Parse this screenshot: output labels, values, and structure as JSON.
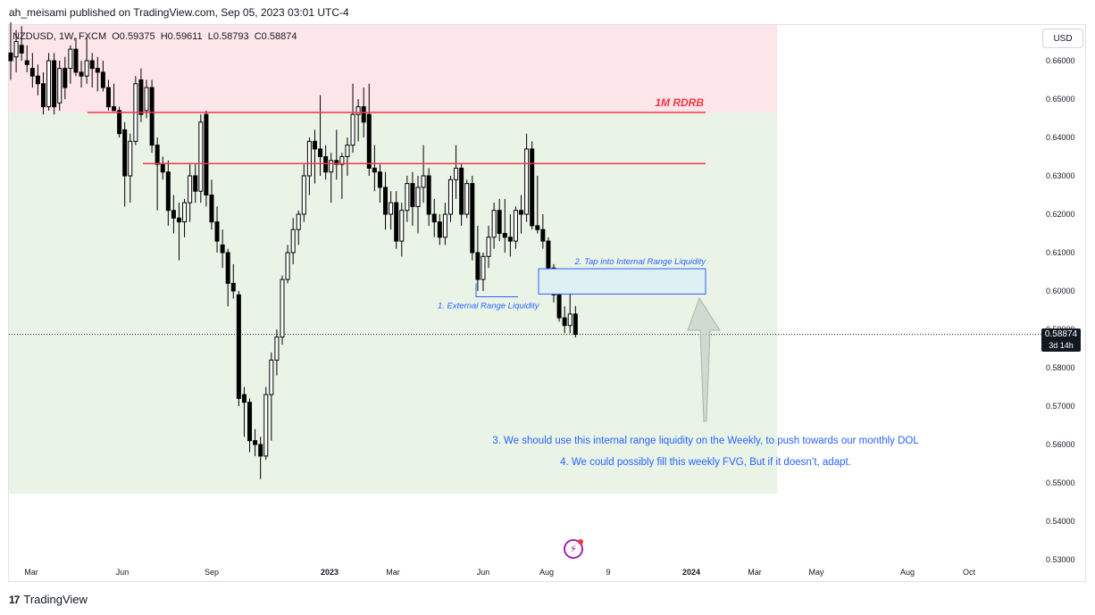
{
  "header": {
    "published": "ah_meisami published on TradingView.com, Sep 05, 2023 03:01 UTC-4"
  },
  "legend": {
    "symbol": "NZDUSD, 1W, FXCM",
    "open": "O0.59375",
    "high": "H0.59611",
    "low": "L0.58793",
    "close": "C0.58874"
  },
  "currency_button": "USD",
  "last_price": {
    "value": "0.58874",
    "countdown": "3d 14h"
  },
  "footer": {
    "brand": "TradingView"
  },
  "colors": {
    "bull": "#ffffff",
    "bear": "#000000",
    "wick": "#000000",
    "premium_zone": "#fde6ea",
    "discount_zone": "#e9f4e7",
    "level_line": "#f23645",
    "fvg_fill": "#dff0f4",
    "fvg_border": "#2962ff",
    "annotation_text": "#2962ff",
    "arrow": "#c8d1c8"
  },
  "chart_data": {
    "type": "candlestick",
    "ylim": [
      0.53,
      0.66
    ],
    "y_ticks": [
      "0.66000",
      "0.65000",
      "0.64000",
      "0.63000",
      "0.62000",
      "0.61000",
      "0.60000",
      "0.59000",
      "0.58000",
      "0.57000",
      "0.56000",
      "0.55000",
      "0.54000",
      "0.53000"
    ],
    "x_ticks": [
      "Mar",
      "Jun",
      "Sep",
      "2023",
      "Mar",
      "Jun",
      "Aug",
      "9",
      "2024",
      "Mar",
      "May",
      "Aug",
      "Oct"
    ],
    "candles": [
      {
        "o": 0.662,
        "h": 0.67,
        "l": 0.655,
        "c": 0.66
      },
      {
        "o": 0.661,
        "h": 0.668,
        "l": 0.657,
        "c": 0.665
      },
      {
        "o": 0.664,
        "h": 0.669,
        "l": 0.66,
        "c": 0.662
      },
      {
        "o": 0.66,
        "h": 0.664,
        "l": 0.657,
        "c": 0.659
      },
      {
        "o": 0.658,
        "h": 0.662,
        "l": 0.653,
        "c": 0.656
      },
      {
        "o": 0.656,
        "h": 0.659,
        "l": 0.651,
        "c": 0.654
      },
      {
        "o": 0.654,
        "h": 0.657,
        "l": 0.646,
        "c": 0.648
      },
      {
        "o": 0.648,
        "h": 0.662,
        "l": 0.647,
        "c": 0.66
      },
      {
        "o": 0.66,
        "h": 0.662,
        "l": 0.646,
        "c": 0.648
      },
      {
        "o": 0.649,
        "h": 0.66,
        "l": 0.647,
        "c": 0.658
      },
      {
        "o": 0.658,
        "h": 0.661,
        "l": 0.65,
        "c": 0.653
      },
      {
        "o": 0.658,
        "h": 0.664,
        "l": 0.654,
        "c": 0.663
      },
      {
        "o": 0.663,
        "h": 0.666,
        "l": 0.656,
        "c": 0.657
      },
      {
        "o": 0.657,
        "h": 0.66,
        "l": 0.653,
        "c": 0.656
      },
      {
        "o": 0.656,
        "h": 0.666,
        "l": 0.654,
        "c": 0.66
      },
      {
        "o": 0.66,
        "h": 0.662,
        "l": 0.653,
        "c": 0.658
      },
      {
        "o": 0.658,
        "h": 0.661,
        "l": 0.652,
        "c": 0.657
      },
      {
        "o": 0.657,
        "h": 0.66,
        "l": 0.652,
        "c": 0.653
      },
      {
        "o": 0.653,
        "h": 0.655,
        "l": 0.647,
        "c": 0.648
      },
      {
        "o": 0.648,
        "h": 0.654,
        "l": 0.647,
        "c": 0.647
      },
      {
        "o": 0.647,
        "h": 0.648,
        "l": 0.64,
        "c": 0.641
      },
      {
        "o": 0.642,
        "h": 0.644,
        "l": 0.622,
        "c": 0.63
      },
      {
        "o": 0.63,
        "h": 0.641,
        "l": 0.623,
        "c": 0.639
      },
      {
        "o": 0.639,
        "h": 0.656,
        "l": 0.638,
        "c": 0.654
      },
      {
        "o": 0.655,
        "h": 0.658,
        "l": 0.644,
        "c": 0.646
      },
      {
        "o": 0.647,
        "h": 0.655,
        "l": 0.645,
        "c": 0.653
      },
      {
        "o": 0.653,
        "h": 0.655,
        "l": 0.636,
        "c": 0.638
      },
      {
        "o": 0.638,
        "h": 0.64,
        "l": 0.621,
        "c": 0.633
      },
      {
        "o": 0.633,
        "h": 0.635,
        "l": 0.629,
        "c": 0.631
      },
      {
        "o": 0.631,
        "h": 0.634,
        "l": 0.617,
        "c": 0.621
      },
      {
        "o": 0.621,
        "h": 0.625,
        "l": 0.615,
        "c": 0.619
      },
      {
        "o": 0.619,
        "h": 0.623,
        "l": 0.608,
        "c": 0.618
      },
      {
        "o": 0.618,
        "h": 0.624,
        "l": 0.614,
        "c": 0.623
      },
      {
        "o": 0.623,
        "h": 0.633,
        "l": 0.618,
        "c": 0.63
      },
      {
        "o": 0.63,
        "h": 0.633,
        "l": 0.623,
        "c": 0.626
      },
      {
        "o": 0.626,
        "h": 0.646,
        "l": 0.623,
        "c": 0.644
      },
      {
        "o": 0.646,
        "h": 0.647,
        "l": 0.622,
        "c": 0.625
      },
      {
        "o": 0.625,
        "h": 0.629,
        "l": 0.616,
        "c": 0.618
      },
      {
        "o": 0.618,
        "h": 0.622,
        "l": 0.61,
        "c": 0.613
      },
      {
        "o": 0.612,
        "h": 0.616,
        "l": 0.606,
        "c": 0.61
      },
      {
        "o": 0.61,
        "h": 0.611,
        "l": 0.596,
        "c": 0.602
      },
      {
        "o": 0.602,
        "h": 0.607,
        "l": 0.598,
        "c": 0.6
      },
      {
        "o": 0.599,
        "h": 0.6,
        "l": 0.57,
        "c": 0.572
      },
      {
        "o": 0.573,
        "h": 0.575,
        "l": 0.562,
        "c": 0.571
      },
      {
        "o": 0.571,
        "h": 0.572,
        "l": 0.558,
        "c": 0.561
      },
      {
        "o": 0.561,
        "h": 0.564,
        "l": 0.557,
        "c": 0.56
      },
      {
        "o": 0.56,
        "h": 0.562,
        "l": 0.551,
        "c": 0.557
      },
      {
        "o": 0.557,
        "h": 0.575,
        "l": 0.556,
        "c": 0.573
      },
      {
        "o": 0.573,
        "h": 0.584,
        "l": 0.561,
        "c": 0.582
      },
      {
        "o": 0.582,
        "h": 0.59,
        "l": 0.578,
        "c": 0.588
      },
      {
        "o": 0.588,
        "h": 0.604,
        "l": 0.586,
        "c": 0.603
      },
      {
        "o": 0.603,
        "h": 0.612,
        "l": 0.602,
        "c": 0.61
      },
      {
        "o": 0.61,
        "h": 0.619,
        "l": 0.607,
        "c": 0.616
      },
      {
        "o": 0.616,
        "h": 0.621,
        "l": 0.612,
        "c": 0.62
      },
      {
        "o": 0.62,
        "h": 0.633,
        "l": 0.618,
        "c": 0.63
      },
      {
        "o": 0.63,
        "h": 0.64,
        "l": 0.625,
        "c": 0.639
      },
      {
        "o": 0.639,
        "h": 0.642,
        "l": 0.628,
        "c": 0.637
      },
      {
        "o": 0.637,
        "h": 0.651,
        "l": 0.63,
        "c": 0.635
      },
      {
        "o": 0.635,
        "h": 0.638,
        "l": 0.629,
        "c": 0.631
      },
      {
        "o": 0.631,
        "h": 0.636,
        "l": 0.623,
        "c": 0.634
      },
      {
        "o": 0.634,
        "h": 0.642,
        "l": 0.629,
        "c": 0.633
      },
      {
        "o": 0.633,
        "h": 0.636,
        "l": 0.624,
        "c": 0.635
      },
      {
        "o": 0.635,
        "h": 0.64,
        "l": 0.63,
        "c": 0.638
      },
      {
        "o": 0.638,
        "h": 0.654,
        "l": 0.636,
        "c": 0.646
      },
      {
        "o": 0.646,
        "h": 0.65,
        "l": 0.639,
        "c": 0.648
      },
      {
        "o": 0.648,
        "h": 0.653,
        "l": 0.64,
        "c": 0.644
      },
      {
        "o": 0.646,
        "h": 0.654,
        "l": 0.63,
        "c": 0.632
      },
      {
        "o": 0.632,
        "h": 0.638,
        "l": 0.626,
        "c": 0.631
      },
      {
        "o": 0.631,
        "h": 0.633,
        "l": 0.623,
        "c": 0.627
      },
      {
        "o": 0.627,
        "h": 0.631,
        "l": 0.616,
        "c": 0.62
      },
      {
        "o": 0.62,
        "h": 0.626,
        "l": 0.616,
        "c": 0.623
      },
      {
        "o": 0.623,
        "h": 0.626,
        "l": 0.611,
        "c": 0.613
      },
      {
        "o": 0.613,
        "h": 0.623,
        "l": 0.609,
        "c": 0.621
      },
      {
        "o": 0.621,
        "h": 0.63,
        "l": 0.618,
        "c": 0.628
      },
      {
        "o": 0.628,
        "h": 0.631,
        "l": 0.617,
        "c": 0.622
      },
      {
        "o": 0.622,
        "h": 0.63,
        "l": 0.615,
        "c": 0.627
      },
      {
        "o": 0.627,
        "h": 0.638,
        "l": 0.623,
        "c": 0.63
      },
      {
        "o": 0.63,
        "h": 0.632,
        "l": 0.617,
        "c": 0.62
      },
      {
        "o": 0.62,
        "h": 0.624,
        "l": 0.614,
        "c": 0.618
      },
      {
        "o": 0.618,
        "h": 0.62,
        "l": 0.612,
        "c": 0.614
      },
      {
        "o": 0.614,
        "h": 0.623,
        "l": 0.612,
        "c": 0.62
      },
      {
        "o": 0.62,
        "h": 0.63,
        "l": 0.618,
        "c": 0.629
      },
      {
        "o": 0.629,
        "h": 0.638,
        "l": 0.624,
        "c": 0.632
      },
      {
        "o": 0.632,
        "h": 0.633,
        "l": 0.617,
        "c": 0.62
      },
      {
        "o": 0.62,
        "h": 0.629,
        "l": 0.619,
        "c": 0.628
      },
      {
        "o": 0.628,
        "h": 0.63,
        "l": 0.608,
        "c": 0.61
      },
      {
        "o": 0.61,
        "h": 0.617,
        "l": 0.6,
        "c": 0.603
      },
      {
        "o": 0.603,
        "h": 0.61,
        "l": 0.6,
        "c": 0.609
      },
      {
        "o": 0.609,
        "h": 0.617,
        "l": 0.606,
        "c": 0.614
      },
      {
        "o": 0.614,
        "h": 0.623,
        "l": 0.611,
        "c": 0.621
      },
      {
        "o": 0.621,
        "h": 0.624,
        "l": 0.613,
        "c": 0.615
      },
      {
        "o": 0.615,
        "h": 0.624,
        "l": 0.61,
        "c": 0.614
      },
      {
        "o": 0.614,
        "h": 0.62,
        "l": 0.609,
        "c": 0.613
      },
      {
        "o": 0.613,
        "h": 0.622,
        "l": 0.611,
        "c": 0.621
      },
      {
        "o": 0.621,
        "h": 0.625,
        "l": 0.615,
        "c": 0.62
      },
      {
        "o": 0.62,
        "h": 0.641,
        "l": 0.618,
        "c": 0.637
      },
      {
        "o": 0.637,
        "h": 0.639,
        "l": 0.616,
        "c": 0.617
      },
      {
        "o": 0.617,
        "h": 0.63,
        "l": 0.615,
        "c": 0.616
      },
      {
        "o": 0.616,
        "h": 0.62,
        "l": 0.611,
        "c": 0.613
      },
      {
        "o": 0.613,
        "h": 0.614,
        "l": 0.602,
        "c": 0.606
      },
      {
        "o": 0.606,
        "h": 0.607,
        "l": 0.597,
        "c": 0.599
      },
      {
        "o": 0.599,
        "h": 0.6,
        "l": 0.592,
        "c": 0.593
      },
      {
        "o": 0.593,
        "h": 0.596,
        "l": 0.589,
        "c": 0.591
      },
      {
        "o": 0.591,
        "h": 0.601,
        "l": 0.589,
        "c": 0.594
      },
      {
        "o": 0.594,
        "h": 0.5961,
        "l": 0.5879,
        "c": 0.5887
      }
    ],
    "levels": [
      {
        "price": 0.6465,
        "label": "1M RDRB"
      },
      {
        "price": 0.6332,
        "label": ""
      }
    ],
    "fvg_zone": {
      "top": 0.6058,
      "bottom": 0.5992,
      "label": "2. Tap into Internal Range Liquidity"
    },
    "external_liquidity": {
      "price": 0.5985,
      "label": "1. External Range Liquidity"
    },
    "premium_zone": {
      "top": 0.664,
      "bottom": 0.6465
    },
    "discount_zone": {
      "top": 0.6465,
      "bottom": 0.5472
    },
    "notes": [
      "3. We should use this internal range liquidity on the Weekly, to push towards our monthly DOL",
      "4. We could possibly fill this weekly FVG, But if it doesn’t, adapt."
    ]
  }
}
